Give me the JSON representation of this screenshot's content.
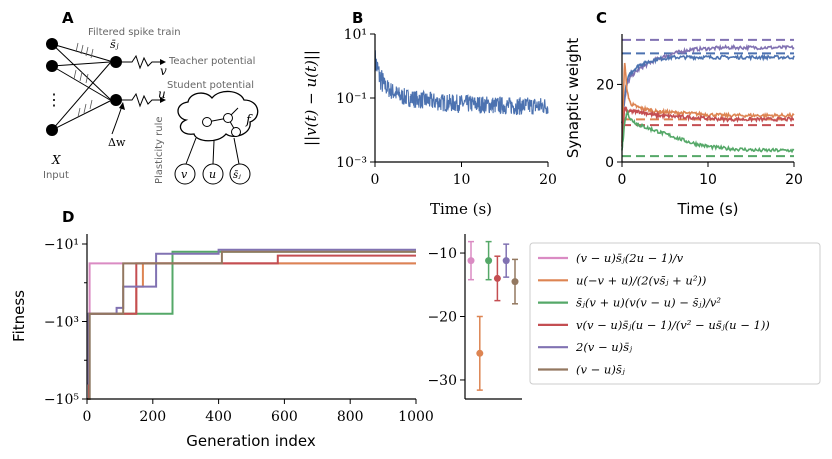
{
  "panels": {
    "a": "A",
    "b": "B",
    "c": "C",
    "d": "D"
  },
  "diagram": {
    "filtered_spike_train": "Filtered spike train",
    "sbar_j": "s̄ⱼ",
    "teacher_potential": "Teacher potential",
    "student_potential": "Student potential",
    "v": "v",
    "u": "u",
    "delta_w": "Δw",
    "plasticity_rule": "Plasticity rule",
    "f": "f",
    "X": "X",
    "input": "Input",
    "dots": "⋮"
  },
  "chart_data": [
    {
      "id": "B",
      "type": "line",
      "title": "",
      "xlabel": "Time (s)",
      "ylabel": "||v(t) − u(t)||",
      "yscale": "log",
      "xlim": [
        0,
        20
      ],
      "ylim_exp": [
        -3,
        1
      ],
      "xticks": [
        "0",
        "10",
        "20"
      ],
      "yticks": [
        "10⁻³",
        "10⁻¹",
        "10¹"
      ],
      "color": "#4c72b0",
      "trend": {
        "t": [
          0,
          0.5,
          1,
          2,
          3,
          5,
          8,
          12,
          16,
          20
        ],
        "log10_y": [
          0.2,
          -0.3,
          -0.6,
          -0.8,
          -0.95,
          -1.05,
          -1.15,
          -1.2,
          -1.25,
          -1.25
        ]
      },
      "noise_amplitude_log10": 0.28
    },
    {
      "id": "C",
      "type": "line",
      "xlabel": "Time (s)",
      "ylabel": "Synaptic weight",
      "xlim": [
        0,
        20
      ],
      "ylim": [
        0,
        33
      ],
      "xticks": [
        "0",
        "10",
        "20"
      ],
      "yticks": [
        "0",
        "20"
      ],
      "targets": [
        {
          "value": 31.5,
          "color": "#8172b2"
        },
        {
          "value": 28,
          "color": "#4c72b0"
        },
        {
          "value": 11,
          "color": "#dd8452"
        },
        {
          "value": 9.5,
          "color": "#c44e52"
        },
        {
          "value": 1.5,
          "color": "#55a868"
        }
      ],
      "series": [
        {
          "name": "purple",
          "color": "#8172b2",
          "t": [
            0,
            0.3,
            0.6,
            1,
            2,
            4,
            6,
            8,
            12,
            16,
            20
          ],
          "w": [
            10,
            16,
            20,
            22,
            24,
            26.5,
            28,
            29,
            29.5,
            29.5,
            29.5
          ]
        },
        {
          "name": "blue",
          "color": "#4c72b0",
          "t": [
            0,
            0.3,
            0.6,
            1,
            2,
            4,
            6,
            8,
            12,
            16,
            20
          ],
          "w": [
            10,
            17,
            21,
            23,
            25,
            26.5,
            27,
            27,
            27,
            27,
            27
          ]
        },
        {
          "name": "orange",
          "color": "#dd8452",
          "t": [
            0,
            0.3,
            0.6,
            1,
            2,
            4,
            8,
            12,
            16,
            20
          ],
          "w": [
            5,
            26,
            18,
            15,
            14,
            13,
            12.5,
            12,
            12,
            12
          ]
        },
        {
          "name": "red",
          "color": "#c44e52",
          "t": [
            0,
            0.3,
            0.6,
            1,
            2,
            4,
            8,
            12,
            16,
            20
          ],
          "w": [
            4,
            14,
            13,
            13,
            13,
            12,
            11.5,
            11,
            11,
            11
          ]
        },
        {
          "name": "green",
          "color": "#55a868",
          "t": [
            0,
            0.3,
            0.6,
            1,
            2,
            4,
            6,
            8,
            10,
            12,
            16,
            20
          ],
          "w": [
            3,
            10,
            13,
            11,
            9.5,
            8,
            6.5,
            5,
            4,
            3.5,
            3,
            3
          ]
        }
      ]
    },
    {
      "id": "D",
      "type": "line",
      "xlabel": "Generation index",
      "ylabel": "Fitness",
      "yscale": "symlog",
      "xlim": [
        0,
        1000
      ],
      "ylim_exp": [
        1,
        5
      ],
      "xticks": [
        "0",
        "200",
        "400",
        "600",
        "800",
        "1000"
      ],
      "yticks": [
        "−10¹",
        "−10³",
        "−10⁵"
      ],
      "series": [
        {
          "name": "pink",
          "color": "#da8bc3",
          "x": [
            0,
            8,
            8,
            1000
          ],
          "exp": [
            5,
            5,
            1.5,
            1.5
          ]
        },
        {
          "name": "orange",
          "color": "#dd8452",
          "x": [
            0,
            6,
            6,
            150,
            150,
            170,
            170,
            1000
          ],
          "exp": [
            5,
            5,
            2.8,
            2.8,
            2.1,
            2.1,
            1.5,
            1.5
          ]
        },
        {
          "name": "green",
          "color": "#55a868",
          "x": [
            0,
            8,
            8,
            260,
            260,
            1000
          ],
          "exp": [
            5,
            5,
            2.8,
            2.8,
            1.2,
            1.2
          ]
        },
        {
          "name": "red",
          "color": "#c44e52",
          "x": [
            0,
            6,
            6,
            150,
            150,
            580,
            580,
            1000
          ],
          "exp": [
            5,
            5,
            2.8,
            2.8,
            1.5,
            1.5,
            1.3,
            1.3
          ]
        },
        {
          "name": "purple",
          "color": "#8172b2",
          "x": [
            0,
            5,
            5,
            90,
            90,
            110,
            110,
            210,
            210,
            400,
            400,
            1000
          ],
          "exp": [
            4.6,
            4.6,
            2.8,
            2.8,
            2.65,
            2.65,
            2.1,
            2.1,
            1.25,
            1.25,
            1.15,
            1.15
          ]
        },
        {
          "name": "brown",
          "color": "#937860",
          "x": [
            0,
            8,
            8,
            110,
            110,
            410,
            410,
            1000
          ],
          "exp": [
            5,
            5,
            2.8,
            2.8,
            1.5,
            1.5,
            1.2,
            1.2
          ]
        }
      ]
    },
    {
      "id": "D-inset",
      "type": "scatter",
      "ylim": [
        -33,
        -7
      ],
      "yticks": [
        "−10",
        "−20",
        "−30"
      ],
      "points": [
        {
          "name": "pink",
          "color": "#da8bc3",
          "y": -11.2,
          "err": 3.0
        },
        {
          "name": "orange",
          "color": "#dd8452",
          "y": -25.8,
          "err": 5.8
        },
        {
          "name": "green",
          "color": "#55a868",
          "y": -11.2,
          "err": 3.0
        },
        {
          "name": "red",
          "color": "#c44e52",
          "y": -14.0,
          "err": 3.5
        },
        {
          "name": "purple",
          "color": "#8172b2",
          "y": -11.2,
          "err": 2.6
        },
        {
          "name": "brown",
          "color": "#937860",
          "y": -14.5,
          "err": 3.5
        }
      ]
    }
  ],
  "legend": [
    {
      "color": "#da8bc3",
      "label": "(v − u)s̄ⱼ(2u − 1)/v"
    },
    {
      "color": "#dd8452",
      "label": "u(−v + u)/(2(vs̄ⱼ + u²))"
    },
    {
      "color": "#55a868",
      "label": "s̄ⱼ(v + u)(v(v − u) − s̄ⱼ)/v²"
    },
    {
      "color": "#c44e52",
      "label": "v(v − u)s̄ⱼ(u − 1)/(v² − us̄ⱼ(u − 1))"
    },
    {
      "color": "#8172b2",
      "label": "2(v − u)s̄ⱼ"
    },
    {
      "color": "#937860",
      "label": "(v − u)s̄ⱼ"
    }
  ]
}
